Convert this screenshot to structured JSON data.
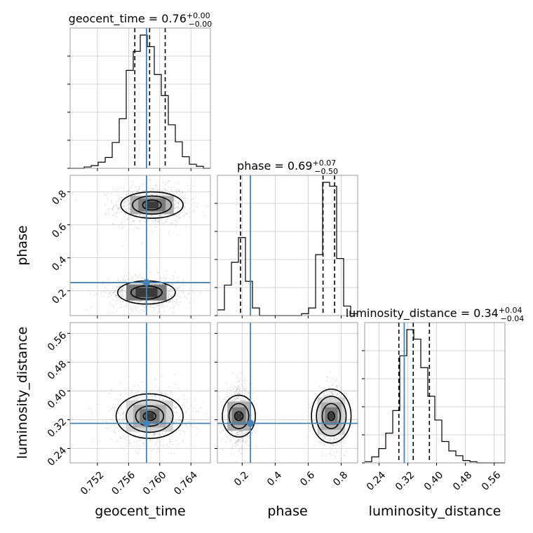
{
  "chart_data": {
    "type": "corner",
    "parameters": [
      {
        "key": "geocent_time",
        "label": "geocent_time",
        "range": [
          0.7485,
          0.7665
        ],
        "ticks": [
          0.752,
          0.756,
          0.76,
          0.764
        ],
        "tick_labels": [
          "0.752",
          "0.756",
          "0.760",
          "0.764"
        ],
        "truth": 0.7583,
        "quantiles": [
          0.7568,
          0.7587,
          0.7607
        ],
        "title_main": "geocent_time = 0.76",
        "title_sup": "+0.00",
        "title_sub": "−0.00",
        "hist_edges": [
          0.7485,
          0.7494,
          0.7503,
          0.7512,
          0.7521,
          0.753,
          0.7539,
          0.7548,
          0.7557,
          0.7566,
          0.7575,
          0.7584,
          0.7593,
          0.7602,
          0.7611,
          0.762,
          0.7629,
          0.7638,
          0.7647,
          0.7656,
          0.7665
        ],
        "hist_counts": [
          0,
          0,
          2,
          4,
          9,
          16,
          38,
          73,
          144,
          172,
          196,
          179,
          138,
          107,
          64,
          39,
          17,
          6,
          3,
          0
        ]
      },
      {
        "key": "phase",
        "label": "phase",
        "range": [
          0.05,
          0.9
        ],
        "ticks": [
          0.2,
          0.4,
          0.6,
          0.8
        ],
        "tick_labels": [
          "0.2",
          "0.4",
          "0.6",
          "0.8"
        ],
        "truth": 0.25,
        "quantiles": [
          0.19,
          0.69,
          0.76
        ],
        "title_main": "phase = 0.69",
        "title_sup": "+0.07",
        "title_sub": "−0.50",
        "hist_edges": [
          0.05,
          0.0925,
          0.135,
          0.1775,
          0.22,
          0.2625,
          0.305,
          0.3475,
          0.39,
          0.4325,
          0.475,
          0.5175,
          0.56,
          0.6025,
          0.645,
          0.6875,
          0.73,
          0.7725,
          0.815,
          0.8575,
          0.9
        ],
        "hist_counts": [
          3,
          16,
          28,
          41,
          18,
          4,
          0,
          0,
          0,
          0,
          0,
          0,
          1,
          4,
          32,
          70,
          68,
          30,
          5,
          1
        ]
      },
      {
        "key": "luminosity_distance",
        "label": "luminosity_distance",
        "range": [
          0.2,
          0.59
        ],
        "ticks": [
          0.24,
          0.32,
          0.4,
          0.48,
          0.56
        ],
        "tick_labels": [
          "0.24",
          "0.32",
          "0.40",
          "0.48",
          "0.56"
        ],
        "truth": 0.31,
        "quantiles": [
          0.295,
          0.335,
          0.38
        ],
        "title_main": "luminosity_distance = 0.34",
        "title_sup": "+0.04",
        "title_sub": "−0.04",
        "hist_edges": [
          0.2,
          0.2195,
          0.239,
          0.2585,
          0.278,
          0.2975,
          0.317,
          0.3365,
          0.356,
          0.3755,
          0.395,
          0.4145,
          0.434,
          0.4535,
          0.473,
          0.4925,
          0.512,
          0.5315,
          0.551,
          0.5705,
          0.59
        ],
        "hist_counts": [
          1,
          5,
          12,
          25,
          44,
          90,
          112,
          104,
          80,
          56,
          36,
          18,
          10,
          6,
          2,
          1,
          0,
          0,
          0,
          0
        ]
      }
    ],
    "pair_panels": [
      {
        "x": "geocent_time",
        "y": "phase",
        "modes": [
          {
            "center": [
              0.759,
              0.72
            ],
            "sd": [
              0.0024,
              0.06
            ],
            "contour_levels": [
              [
                0.0012,
                0.03
              ],
              [
                0.0025,
                0.055
              ],
              [
                0.004,
                0.08
              ]
            ]
          },
          {
            "center": [
              0.7583,
              0.19
            ],
            "sd": [
              0.0024,
              0.05
            ],
            "contour_levels": [
              [
                0.002,
                0.04
              ],
              [
                0.0037,
                0.07
              ]
            ]
          }
        ]
      },
      {
        "x": "geocent_time",
        "y": "luminosity_distance",
        "modes": [
          {
            "center": [
              0.7587,
              0.33
            ],
            "sd": [
              0.0024,
              0.04
            ],
            "contour_levels": [
              [
                0.0008,
                0.012
              ],
              [
                0.0018,
                0.028
              ],
              [
                0.003,
                0.045
              ],
              [
                0.0043,
                0.062
              ]
            ]
          }
        ]
      },
      {
        "x": "phase",
        "y": "luminosity_distance",
        "modes": [
          {
            "center": [
              0.18,
              0.33
            ],
            "sd": [
              0.04,
              0.04
            ],
            "contour_levels": [
              [
                0.025,
                0.012
              ],
              [
                0.06,
                0.035
              ],
              [
                0.1,
                0.058
              ]
            ]
          },
          {
            "center": [
              0.74,
              0.33
            ],
            "sd": [
              0.04,
              0.04
            ],
            "contour_levels": [
              [
                0.02,
                0.012
              ],
              [
                0.055,
                0.035
              ],
              [
                0.09,
                0.055
              ],
              [
                0.12,
                0.075
              ]
            ]
          }
        ]
      }
    ],
    "grid": true,
    "colors": {
      "truth": "#4682b4",
      "hist": "#000000",
      "quantile": "#000000",
      "scatter": "#9a9a9a"
    }
  }
}
